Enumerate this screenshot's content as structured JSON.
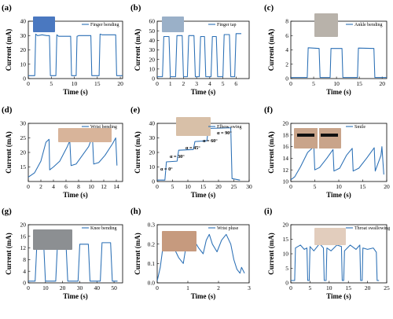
{
  "colors": {
    "series": "#2a6fb5",
    "axis": "#000000",
    "background": "#ffffff"
  },
  "chart_data": [
    {
      "panel": "(a)",
      "type": "line",
      "legend": "Finger bending",
      "xlabel": "Time (s)",
      "ylabel": "Current (mA)",
      "xlim": [
        0,
        20.5
      ],
      "ylim": [
        0,
        40
      ],
      "xticks": [
        0,
        5,
        10,
        15,
        20
      ],
      "yticks": [
        0,
        10,
        20,
        30,
        40
      ],
      "photo": "hand-finger-bending-photo",
      "x": [
        0,
        1.4,
        1.6,
        2.0,
        3.0,
        4.0,
        4.6,
        4.8,
        6.0,
        6.2,
        6.6,
        8.0,
        9.2,
        9.4,
        10.4,
        10.6,
        11.0,
        12.5,
        13.6,
        13.8,
        15.4,
        15.6,
        16.0,
        18.0,
        19.0,
        19.2,
        20.5
      ],
      "y": [
        2,
        2,
        31,
        30,
        30.5,
        30,
        30,
        2,
        2,
        30.5,
        29.5,
        29.5,
        29.5,
        2,
        2,
        29.5,
        30,
        30,
        30,
        2,
        2,
        31,
        30.5,
        30.5,
        30.5,
        2,
        2
      ]
    },
    {
      "panel": "(b)",
      "type": "line",
      "legend": "Finger tap",
      "xlabel": "Time (s)",
      "ylabel": "Current (mA)",
      "xlim": [
        0,
        7
      ],
      "ylim": [
        0,
        60
      ],
      "xticks": [
        0,
        1,
        2,
        3,
        4,
        5,
        6
      ],
      "yticks": [
        0,
        10,
        20,
        30,
        40,
        50,
        60
      ],
      "photo": "finger-tap-photo",
      "x": [
        0,
        0.4,
        0.5,
        0.9,
        1.0,
        1.4,
        1.5,
        1.9,
        2.0,
        2.3,
        2.4,
        2.8,
        2.9,
        3.2,
        3.3,
        3.6,
        3.7,
        4.1,
        4.2,
        4.5,
        4.6,
        5.0,
        5.1,
        5.5,
        5.6,
        5.9,
        6.0,
        6.4
      ],
      "y": [
        2,
        2,
        44,
        44,
        2,
        2,
        45,
        45,
        2,
        2,
        45,
        45,
        2,
        2,
        44,
        44,
        2,
        2,
        44,
        44,
        2,
        2,
        46,
        46,
        2,
        2,
        47,
        47
      ]
    },
    {
      "panel": "(c)",
      "type": "line",
      "legend": "Ankle bending",
      "xlabel": "Time (s)",
      "ylabel": "Current (mA)",
      "xlim": [
        0,
        21
      ],
      "ylim": [
        0,
        8
      ],
      "xticks": [
        0,
        5,
        10,
        15,
        20
      ],
      "yticks": [
        0,
        2,
        4,
        6,
        8
      ],
      "photo": "ankle-bending-photo",
      "x": [
        0,
        3.6,
        3.8,
        6.2,
        6.4,
        8.6,
        8.8,
        11.2,
        11.4,
        14.6,
        14.8,
        18.2,
        18.4,
        21
      ],
      "y": [
        0.15,
        0.15,
        4.3,
        4.2,
        0.15,
        0.15,
        4.2,
        4.2,
        0.15,
        0.15,
        4.25,
        4.2,
        0.15,
        0.15
      ]
    },
    {
      "panel": "(d)",
      "type": "line",
      "legend": "Wrist bending",
      "xlabel": "Time (s)",
      "ylabel": "Current (mA)",
      "xlim": [
        0,
        15
      ],
      "ylim": [
        10,
        30
      ],
      "xticks": [
        0,
        2,
        4,
        6,
        8,
        10,
        12,
        14
      ],
      "yticks": [
        15,
        20,
        25,
        30
      ],
      "photo": "wrist-bending-photo",
      "x": [
        0,
        1.0,
        2.0,
        2.8,
        3.3,
        3.4,
        4.0,
        5.0,
        6.2,
        6.6,
        6.8,
        7.6,
        8.6,
        9.6,
        10.2,
        10.4,
        11.2,
        12.2,
        13.4,
        13.9,
        14.1
      ],
      "y": [
        11.5,
        13,
        17,
        23.5,
        24.5,
        14,
        15,
        17,
        22,
        24,
        15.5,
        16,
        19,
        22,
        25.5,
        16,
        16.5,
        19,
        23,
        25,
        15.5
      ]
    },
    {
      "panel": "(e)",
      "type": "line",
      "legend": "Elbow swing",
      "xlabel": "Time (s)",
      "ylabel": "Current (mA)",
      "xlim": [
        0,
        30
      ],
      "ylim": [
        0,
        40
      ],
      "xticks": [
        0,
        5,
        10,
        15,
        20,
        25,
        30
      ],
      "yticks": [
        0,
        10,
        20,
        30,
        40
      ],
      "photo": "elbow-swing-photo",
      "annotations": [
        "α = 0°",
        "α = 30°",
        "α = 45°",
        "α = 60°",
        "α = 90°"
      ],
      "x": [
        0,
        2.5,
        3.0,
        6.5,
        7.0,
        11.8,
        12.3,
        16.2,
        16.7,
        24.0,
        24.4,
        27
      ],
      "y": [
        1,
        1,
        13.5,
        14,
        21.5,
        22,
        27.5,
        28,
        36.5,
        37,
        2,
        1
      ]
    },
    {
      "panel": "(f)",
      "type": "line",
      "legend": "Smile",
      "xlabel": "Time (s)",
      "ylabel": "Current (mA)",
      "xlim": [
        0,
        20
      ],
      "ylim": [
        10,
        20
      ],
      "xticks": [
        0,
        5,
        10,
        15,
        20
      ],
      "yticks": [
        10,
        12,
        14,
        16,
        18,
        20
      ],
      "photo": "smile-face-photos",
      "x": [
        0,
        0.8,
        2.0,
        3.5,
        4.8,
        5.0,
        6.0,
        7.5,
        8.8,
        9.0,
        10.2,
        11.6,
        12.8,
        13.0,
        14.2,
        15.8,
        17.4,
        17.6,
        18.8,
        19.0,
        19.4
      ],
      "y": [
        10.3,
        10.8,
        12.5,
        15,
        16,
        12,
        12.4,
        14,
        15.5,
        11.8,
        12.3,
        14.5,
        15.7,
        11.8,
        12.3,
        14,
        15.8,
        11.8,
        14.5,
        16,
        11.2
      ]
    },
    {
      "panel": "(g)",
      "type": "line",
      "legend": "Knee bending",
      "xlabel": "Time (s)",
      "ylabel": "Current (mA)",
      "xlim": [
        0,
        55
      ],
      "ylim": [
        0,
        20
      ],
      "xticks": [
        0,
        10,
        20,
        30,
        40,
        50
      ],
      "yticks": [
        0,
        4,
        8,
        12,
        16,
        20
      ],
      "photo": "knee-bending-photo",
      "x": [
        0,
        4.0,
        5.0,
        9.0,
        10.0,
        16.0,
        17.0,
        22.0,
        23.0,
        29.0,
        30.0,
        35.0,
        36.0,
        42.0,
        43.0,
        48.0,
        49.0,
        52.0
      ],
      "y": [
        0.6,
        0.6,
        13.3,
        13.3,
        0.6,
        0.6,
        13.3,
        13.3,
        0.6,
        0.6,
        13.3,
        13.3,
        0.6,
        0.6,
        13.8,
        13.8,
        0.6,
        0.6
      ]
    },
    {
      "panel": "(h)",
      "type": "line",
      "legend": "Wrist pluse",
      "xlabel": "Time (s)",
      "ylabel": "Current (mA)",
      "xlim": [
        0,
        3.0
      ],
      "ylim": [
        0,
        0.3
      ],
      "xticks": [
        0,
        1,
        2,
        3
      ],
      "yticks": [
        0.0,
        0.1,
        0.2,
        0.3
      ],
      "photo": "wrist-pulse-photo",
      "x": [
        0,
        0.1,
        0.2,
        0.3,
        0.42,
        0.55,
        0.7,
        0.85,
        0.95,
        1.05,
        1.2,
        1.35,
        1.5,
        1.6,
        1.7,
        1.8,
        1.95,
        2.1,
        2.25,
        2.4,
        2.5,
        2.6,
        2.7,
        2.75,
        2.85
      ],
      "y": [
        0.01,
        0.08,
        0.2,
        0.25,
        0.2,
        0.18,
        0.13,
        0.1,
        0.2,
        0.24,
        0.22,
        0.18,
        0.15,
        0.22,
        0.25,
        0.2,
        0.16,
        0.22,
        0.25,
        0.2,
        0.12,
        0.07,
        0.05,
        0.08,
        0.05
      ]
    },
    {
      "panel": "(i)",
      "type": "line",
      "legend": "Throat swallowing",
      "xlabel": "Time (s)",
      "ylabel": "Current (mA)",
      "xlim": [
        0,
        25
      ],
      "ylim": [
        0,
        20
      ],
      "xticks": [
        0,
        5,
        10,
        15,
        20,
        25
      ],
      "yticks": [
        0,
        5,
        10,
        15,
        20
      ],
      "photo": "throat-swallowing-photo",
      "x": [
        0,
        1.0,
        1.2,
        2.5,
        3.5,
        4.2,
        4.4,
        4.8,
        5.0,
        6.0,
        7.5,
        8.5,
        8.7,
        9.2,
        9.4,
        10.5,
        12.0,
        13.2,
        13.4,
        13.8,
        14.0,
        15.5,
        17.0,
        18.0,
        18.2,
        18.6,
        18.8,
        20.0,
        21.5,
        22.3,
        22.5,
        23
      ],
      "y": [
        0.8,
        0.8,
        12,
        13,
        11.5,
        12,
        0.8,
        0.8,
        12.5,
        11,
        13.5,
        12,
        0.8,
        0.8,
        12,
        11,
        13,
        12.5,
        0.8,
        0.8,
        11,
        13,
        11.5,
        13,
        0.8,
        0.8,
        12,
        11.5,
        12,
        10.5,
        0.8,
        0.8
      ]
    }
  ]
}
